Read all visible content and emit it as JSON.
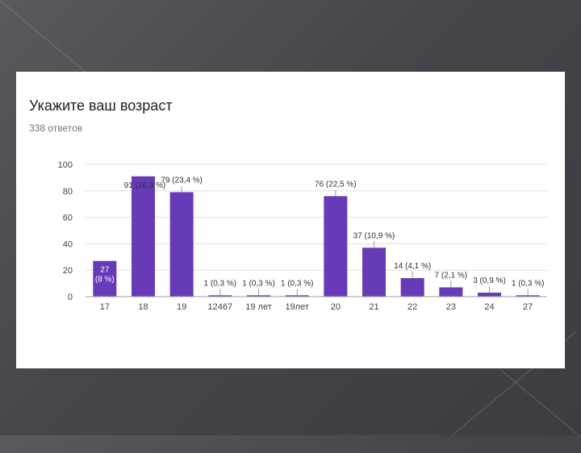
{
  "question": {
    "title": "Укажите ваш возраст",
    "responses": "338 ответов"
  },
  "colors": {
    "bar": "#673ab7",
    "grid": "#e0e0e0",
    "axis_text": "#444444",
    "label_text": "#333333",
    "leader": "#9e9e9e"
  },
  "chart_data": {
    "type": "bar",
    "title": "",
    "xlabel": "",
    "ylabel": "",
    "ylim": [
      0,
      100
    ],
    "yticks": [
      0,
      20,
      40,
      60,
      80,
      100
    ],
    "grid": true,
    "categories": [
      "17",
      "18",
      "19",
      "12467",
      "19 лет",
      "19лет",
      "20",
      "21",
      "22",
      "23",
      "24",
      "27"
    ],
    "values": [
      27,
      91,
      79,
      1,
      1,
      1,
      76,
      37,
      14,
      7,
      3,
      1
    ],
    "labels": [
      "27 (8 %)",
      "91 (26,9 %)",
      "79 (23,4 %)",
      "1 (0,3 %)",
      "1 (0,3 %)",
      "1 (0,3 %)",
      "76 (22,5 %)",
      "37 (10,9 %)",
      "14 (4,1 %)",
      "7 (2,1 %)",
      "3 (0,9 %)",
      "1 (0,3 %)"
    ]
  }
}
